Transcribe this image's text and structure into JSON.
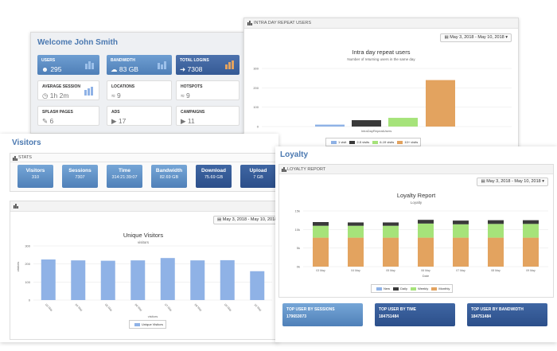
{
  "welcome": {
    "title": "Welcome John Smith",
    "tiles": [
      {
        "label": "USERS",
        "value": "295",
        "icon": "user-icon"
      },
      {
        "label": "BANDWIDTH",
        "value": "83 GB",
        "icon": "cloud-icon"
      },
      {
        "label": "TOTAL LOGINS",
        "value": "7308",
        "icon": "login-icon"
      },
      {
        "label": "AVERAGE SESSION",
        "value": "1h 2m",
        "icon": "clock-icon"
      },
      {
        "label": "LOCATIONS",
        "value": "9",
        "icon": "wifi-icon"
      },
      {
        "label": "HOTSPOTS",
        "value": "9",
        "icon": "wifi-icon"
      },
      {
        "label": "SPLASH PAGES",
        "value": "6",
        "icon": "edit-icon"
      },
      {
        "label": "ADS",
        "value": "17",
        "icon": "play-icon"
      },
      {
        "label": "CAMPAIGNS",
        "value": "11",
        "icon": "play-icon"
      }
    ]
  },
  "repeat_panel": {
    "header": "INTRA DAY REPEAT USERS",
    "date_range": "May 3, 2018 - May 10, 2018",
    "chart_title": "Intra day repeat users",
    "chart_subtitle": "Number of returning users in the same day",
    "x_label": "IntraDayRepeatUsers",
    "legend": [
      "1 visit",
      "2-5 visits",
      "6-19 visits",
      "10+ visits"
    ]
  },
  "visitors": {
    "section_title": "Visitors",
    "stats_header": "STATS",
    "stats": [
      {
        "label": "Visitors",
        "value": "310"
      },
      {
        "label": "Sessions",
        "value": "7307"
      },
      {
        "label": "Time",
        "value": "314:21:39:07"
      },
      {
        "label": "Bandwidth",
        "value": "82.69 GB"
      },
      {
        "label": "Download",
        "value": "75.69 GB"
      },
      {
        "label": "Upload",
        "value": "7 GB"
      }
    ],
    "date_range": "May 3, 2018 - May 10, 2018",
    "chart_title": "Unique Visitors",
    "chart_subtitle": "visitors",
    "y_label": "visitors",
    "x_label": "visitors",
    "legend": "Unique Visitors"
  },
  "loyalty": {
    "section_title": "Loyalty",
    "header": "LOYALTY REPORT",
    "date_range": "May 3, 2018 - May 10, 2018",
    "chart_title": "Loyalty Report",
    "chart_subtitle": "Loyalty",
    "x_label": "Date",
    "legend": [
      "New",
      "Daily",
      "Weekly",
      "Monthly"
    ],
    "top_users": [
      {
        "label": "TOP USER BY SESSIONS",
        "value": "179653073"
      },
      {
        "label": "TOP USER BY TIME",
        "value": "184751484"
      },
      {
        "label": "TOP USER BY BANDWIDTH",
        "value": "184751484"
      }
    ]
  },
  "colors": {
    "accent": "#4a78b0",
    "bar_blue": "#8fb2e6",
    "bar_dark": "#3a3a3a",
    "bar_green": "#a6e37a",
    "bar_orange": "#e3a35f"
  },
  "chart_data": [
    {
      "type": "bar",
      "title": "Intra day repeat users",
      "subtitle": "Number of returning users in the same day",
      "xlabel": "IntraDayRepeatUsers",
      "categories": [
        "IntraDayRepeatUsers"
      ],
      "series": [
        {
          "name": "1 visit",
          "values": [
            10
          ]
        },
        {
          "name": "2-5 visits",
          "values": [
            33
          ]
        },
        {
          "name": "6-19 visits",
          "values": [
            45
          ]
        },
        {
          "name": "10+ visits",
          "values": [
            240
          ]
        }
      ],
      "ylim": [
        0,
        300
      ],
      "yticks": [
        0,
        100,
        200,
        300
      ],
      "legend": "bottom"
    },
    {
      "type": "bar",
      "title": "Unique Visitors",
      "subtitle": "visitors",
      "ylabel": "visitors",
      "xlabel": "visitors",
      "categories": [
        "03 May",
        "04 May",
        "05 May",
        "06 May",
        "07 May",
        "08 May",
        "09 May",
        "10 May"
      ],
      "series": [
        {
          "name": "Unique Visitors",
          "values": [
            225,
            220,
            218,
            220,
            233,
            220,
            221,
            160
          ]
        }
      ],
      "ylim": [
        0,
        300
      ],
      "yticks": [
        0,
        100,
        200,
        300
      ],
      "legend": "bottom"
    },
    {
      "type": "bar",
      "stacked": true,
      "title": "Loyalty Report",
      "subtitle": "Loyalty",
      "xlabel": "Date",
      "categories": [
        "03 May",
        "04 May",
        "05 May",
        "06 May",
        "07 May",
        "08 May",
        "09 May"
      ],
      "series": [
        {
          "name": "New",
          "values": [
            0,
            0,
            0,
            0,
            0,
            0,
            0
          ]
        },
        {
          "name": "Daily",
          "values": [
            1000,
            900,
            900,
            1000,
            1000,
            1000,
            1000
          ]
        },
        {
          "name": "Weekly",
          "values": [
            3200,
            3200,
            3200,
            3800,
            3600,
            3700,
            3700
          ]
        },
        {
          "name": "Monthly",
          "values": [
            7800,
            7800,
            7800,
            7800,
            7800,
            7800,
            7800
          ]
        }
      ],
      "ylim": [
        0,
        15000
      ],
      "yticks": [
        "0k",
        "5k",
        "10k",
        "15k"
      ],
      "legend": "bottom"
    }
  ]
}
